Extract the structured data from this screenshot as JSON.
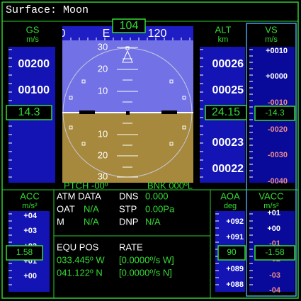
{
  "title": "Surface: Moon",
  "gs": {
    "label": "GS",
    "unit": "m/s",
    "scale": [
      "00200",
      "00100"
    ],
    "readout": "14.3"
  },
  "heading": {
    "scale": [
      "0",
      "E",
      "120"
    ],
    "readout": "104"
  },
  "pitch_ladder": [
    "30",
    "20",
    "10",
    "10",
    "20",
    "30"
  ],
  "pitch": "PTCH -00º",
  "bank": "BNK 000ºL",
  "alt": {
    "label": "ALT",
    "unit": "km",
    "scale": [
      "00026",
      "00025",
      "00023",
      "00022"
    ],
    "readout": "24.15"
  },
  "vs": {
    "label": "VS",
    "unit": "m/s",
    "scale": [
      "+0010",
      "+0000",
      "-0010",
      "-0020",
      "-0030",
      "-0040"
    ],
    "readout": "-14.3"
  },
  "acc": {
    "label": "ACC",
    "unit": "m/s²",
    "scale": [
      "+04",
      "+03",
      "+02",
      "+01",
      "+00"
    ],
    "readout": "1.58"
  },
  "aoa": {
    "label": "AOA",
    "unit": "deg",
    "scale": [
      "+092",
      "+091",
      "+089",
      "+088"
    ],
    "readout": "90"
  },
  "vacc": {
    "label": "VACC",
    "unit": "m/s²",
    "scale": [
      "+01",
      "+00",
      "-01",
      "-02",
      "-03",
      "-04"
    ],
    "readout": "-1.58"
  },
  "atm": {
    "heading": "ATM DATA",
    "rows": [
      [
        "OAT",
        "N/A"
      ],
      [
        "M",
        "N/A"
      ]
    ],
    "right_rows": [
      [
        "DNS",
        "0.000"
      ],
      [
        "STP",
        "0.00Pa"
      ],
      [
        "DNP",
        "N/A"
      ]
    ]
  },
  "position": {
    "heading": "EQU POS",
    "rate_heading": "RATE",
    "rows": [
      [
        "033.445º W",
        "[0.0000º/s W]"
      ],
      [
        "041.122º N",
        "[0.0000º/s N]"
      ]
    ]
  }
}
